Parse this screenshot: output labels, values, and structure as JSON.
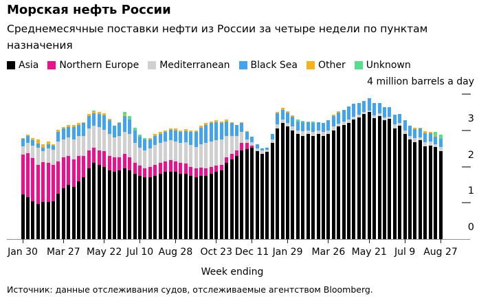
{
  "title": "Морская нефть России",
  "subtitle": "Среднемесячные поставки нефти из России за четыре недели по пунктам назначения",
  "source": "Источник: данные отслеживания судов, отслеживаемые агентством Bloomberg.",
  "legend": [
    {
      "label": "Asia",
      "color": "#000000"
    },
    {
      "label": "Northern Europe",
      "color": "#EC108C"
    },
    {
      "label": "Mediterranean",
      "color": "#D0D0D0"
    },
    {
      "label": "Black Sea",
      "color": "#42A4EE"
    },
    {
      "label": "Other",
      "color": "#F5B31B"
    },
    {
      "label": "Unknown",
      "color": "#57DD8E"
    }
  ],
  "chart_data": {
    "type": "bar",
    "stacked": true,
    "title": "Морская нефть России",
    "xlabel": "Week ending",
    "ylabel": "4 million barrels a day",
    "ylim": [
      0,
      4
    ],
    "grid": false,
    "legend_position": "top",
    "y_axis": {
      "unit_note": "4 million barrels a day",
      "dash_values": [
        4,
        3,
        2,
        1
      ],
      "label_values": [
        3,
        2,
        1,
        0
      ]
    },
    "x_ticks": [
      {
        "week": 0,
        "label": "Jan 30"
      },
      {
        "week": 8,
        "label": "Mar 27"
      },
      {
        "week": 16,
        "label": "May 22"
      },
      {
        "week": 23,
        "label": "Jul 10"
      },
      {
        "week": 30,
        "label": "Aug 28"
      },
      {
        "week": 38,
        "label": "Oct 23"
      },
      {
        "week": 45,
        "label": "Dec 11"
      },
      {
        "week": 52,
        "label": "Jan 29"
      },
      {
        "week": 60,
        "label": "Mar 26"
      },
      {
        "week": 68,
        "label": "May 21"
      },
      {
        "week": 75,
        "label": "Jul 9"
      },
      {
        "week": 82,
        "label": "Aug 27"
      }
    ],
    "series_names": [
      "Asia",
      "Northern Europe",
      "Mediterranean",
      "Black Sea",
      "Other",
      "Unknown"
    ],
    "weeks": [
      [
        1.23,
        1.1,
        0.23,
        0.21,
        0.02,
        0
      ],
      [
        1.16,
        1.21,
        0.28,
        0.19,
        0.05,
        0
      ],
      [
        1.04,
        1.2,
        0.34,
        0.15,
        0.06,
        0
      ],
      [
        0.97,
        1.08,
        0.48,
        0.1,
        0.12,
        0
      ],
      [
        1.02,
        1.1,
        0.3,
        0.1,
        0.1,
        0
      ],
      [
        1.02,
        1.08,
        0.4,
        0.12,
        0.08,
        0
      ],
      [
        1.04,
        1.0,
        0.42,
        0.12,
        0.03,
        0
      ],
      [
        1.25,
        0.9,
        0.55,
        0.25,
        0.07,
        0
      ],
      [
        1.4,
        0.85,
        0.5,
        0.3,
        0.05,
        0
      ],
      [
        1.5,
        0.8,
        0.5,
        0.3,
        0.05,
        0
      ],
      [
        1.45,
        0.75,
        0.55,
        0.35,
        0.05,
        0
      ],
      [
        1.6,
        0.7,
        0.55,
        0.3,
        0.05,
        0
      ],
      [
        1.7,
        0.6,
        0.55,
        0.35,
        0.03,
        0
      ],
      [
        1.95,
        0.5,
        0.6,
        0.35,
        0.05,
        0
      ],
      [
        2.1,
        0.42,
        0.6,
        0.35,
        0.05,
        0.03
      ],
      [
        2.05,
        0.4,
        0.65,
        0.35,
        0.05,
        0
      ],
      [
        2.0,
        0.42,
        0.6,
        0.4,
        0.05,
        0
      ],
      [
        1.9,
        0.4,
        0.6,
        0.38,
        0.03,
        0
      ],
      [
        1.85,
        0.4,
        0.55,
        0.33,
        0,
        0
      ],
      [
        1.9,
        0.35,
        0.6,
        0.35,
        0.03,
        0
      ],
      [
        1.95,
        0.4,
        0.6,
        0.45,
        0.03,
        0.08
      ],
      [
        1.9,
        0.35,
        0.65,
        0.4,
        0,
        0.1
      ],
      [
        1.8,
        0.3,
        0.55,
        0.35,
        0,
        0.08
      ],
      [
        1.75,
        0.28,
        0.5,
        0.3,
        0,
        0.05
      ],
      [
        1.7,
        0.25,
        0.5,
        0.3,
        0,
        0.03
      ],
      [
        1.7,
        0.3,
        0.5,
        0.25,
        0.03,
        0
      ],
      [
        1.75,
        0.3,
        0.55,
        0.25,
        0.05,
        0
      ],
      [
        1.8,
        0.3,
        0.55,
        0.25,
        0.05,
        0
      ],
      [
        1.85,
        0.3,
        0.55,
        0.25,
        0.05,
        0
      ],
      [
        1.85,
        0.33,
        0.55,
        0.28,
        0.05,
        0
      ],
      [
        1.85,
        0.3,
        0.55,
        0.3,
        0.05,
        0
      ],
      [
        1.8,
        0.3,
        0.55,
        0.3,
        0.05,
        0
      ],
      [
        1.8,
        0.28,
        0.6,
        0.3,
        0.05,
        0
      ],
      [
        1.75,
        0.25,
        0.6,
        0.35,
        0.05,
        0
      ],
      [
        1.7,
        0.25,
        0.6,
        0.4,
        0.05,
        0
      ],
      [
        1.75,
        0.22,
        0.65,
        0.45,
        0.05,
        0
      ],
      [
        1.75,
        0.2,
        0.7,
        0.5,
        0.05,
        0
      ],
      [
        1.8,
        0.2,
        0.7,
        0.5,
        0.05,
        0
      ],
      [
        1.85,
        0.18,
        0.7,
        0.5,
        0.05,
        0
      ],
      [
        1.9,
        0.15,
        0.7,
        0.45,
        0.05,
        0
      ],
      [
        2.1,
        0.15,
        0.6,
        0.4,
        0.05,
        0
      ],
      [
        2.2,
        0.15,
        0.5,
        0.35,
        0.03,
        0
      ],
      [
        2.3,
        0.15,
        0.4,
        0.3,
        0,
        0
      ],
      [
        2.45,
        0.2,
        0.3,
        0.25,
        0.03,
        0
      ],
      [
        2.48,
        0.17,
        0.1,
        0.2,
        0.03,
        0
      ],
      [
        2.52,
        0.05,
        0.1,
        0.15,
        0,
        0
      ],
      [
        2.43,
        0,
        0.08,
        0.1,
        0,
        0
      ],
      [
        2.36,
        0,
        0.08,
        0.06,
        0,
        0
      ],
      [
        2.4,
        0,
        0.07,
        0.05,
        0,
        0
      ],
      [
        2.65,
        0,
        0.1,
        0.15,
        0,
        0
      ],
      [
        3.05,
        0,
        0.12,
        0.3,
        0.04,
        0
      ],
      [
        3.2,
        0,
        0.1,
        0.27,
        0.05,
        0
      ],
      [
        3.1,
        0,
        0.1,
        0.28,
        0.05,
        0
      ],
      [
        3.0,
        0,
        0.1,
        0.28,
        0.03,
        0
      ],
      [
        2.9,
        0,
        0.1,
        0.25,
        0,
        0.05
      ],
      [
        2.85,
        0,
        0.12,
        0.25,
        0,
        0.05
      ],
      [
        2.9,
        0,
        0.1,
        0.22,
        0.03,
        0
      ],
      [
        2.85,
        0,
        0.1,
        0.25,
        0,
        0.04
      ],
      [
        2.9,
        0,
        0.1,
        0.22,
        0,
        0
      ],
      [
        2.85,
        0,
        0.1,
        0.25,
        0,
        0
      ],
      [
        2.9,
        0,
        0.1,
        0.28,
        0,
        0
      ],
      [
        3.0,
        0,
        0.1,
        0.3,
        0.03,
        0
      ],
      [
        3.1,
        0,
        0.08,
        0.3,
        0.05,
        0
      ],
      [
        3.15,
        0,
        0.1,
        0.32,
        0,
        0
      ],
      [
        3.2,
        0,
        0.1,
        0.35,
        0,
        0
      ],
      [
        3.3,
        0,
        0.08,
        0.35,
        0,
        0
      ],
      [
        3.35,
        0,
        0.08,
        0.32,
        0,
        0
      ],
      [
        3.45,
        0,
        0.06,
        0.3,
        0,
        0
      ],
      [
        3.5,
        0,
        0.05,
        0.33,
        0,
        0
      ],
      [
        3.34,
        0,
        0.08,
        0.33,
        0,
        0
      ],
      [
        3.4,
        0,
        0.07,
        0.28,
        0,
        0
      ],
      [
        3.28,
        0,
        0.08,
        0.28,
        0,
        0
      ],
      [
        3.31,
        0,
        0.07,
        0.26,
        0,
        0
      ],
      [
        3.06,
        0,
        0.1,
        0.28,
        0,
        0
      ],
      [
        3.13,
        0,
        0.08,
        0.24,
        0,
        0
      ],
      [
        2.9,
        0,
        0.1,
        0.28,
        0,
        0
      ],
      [
        2.75,
        0,
        0.1,
        0.28,
        0,
        0
      ],
      [
        2.68,
        0,
        0.1,
        0.26,
        0.03,
        0
      ],
      [
        2.73,
        0,
        0.08,
        0.24,
        0.03,
        0
      ],
      [
        2.56,
        0,
        0.12,
        0.24,
        0.05,
        0
      ],
      [
        2.58,
        0,
        0.12,
        0.22,
        0.03,
        0
      ],
      [
        2.54,
        0,
        0.08,
        0.2,
        0.05,
        0.08
      ],
      [
        2.43,
        0,
        0.12,
        0.22,
        0,
        0.12
      ]
    ]
  },
  "x_axis_title": "Week ending"
}
